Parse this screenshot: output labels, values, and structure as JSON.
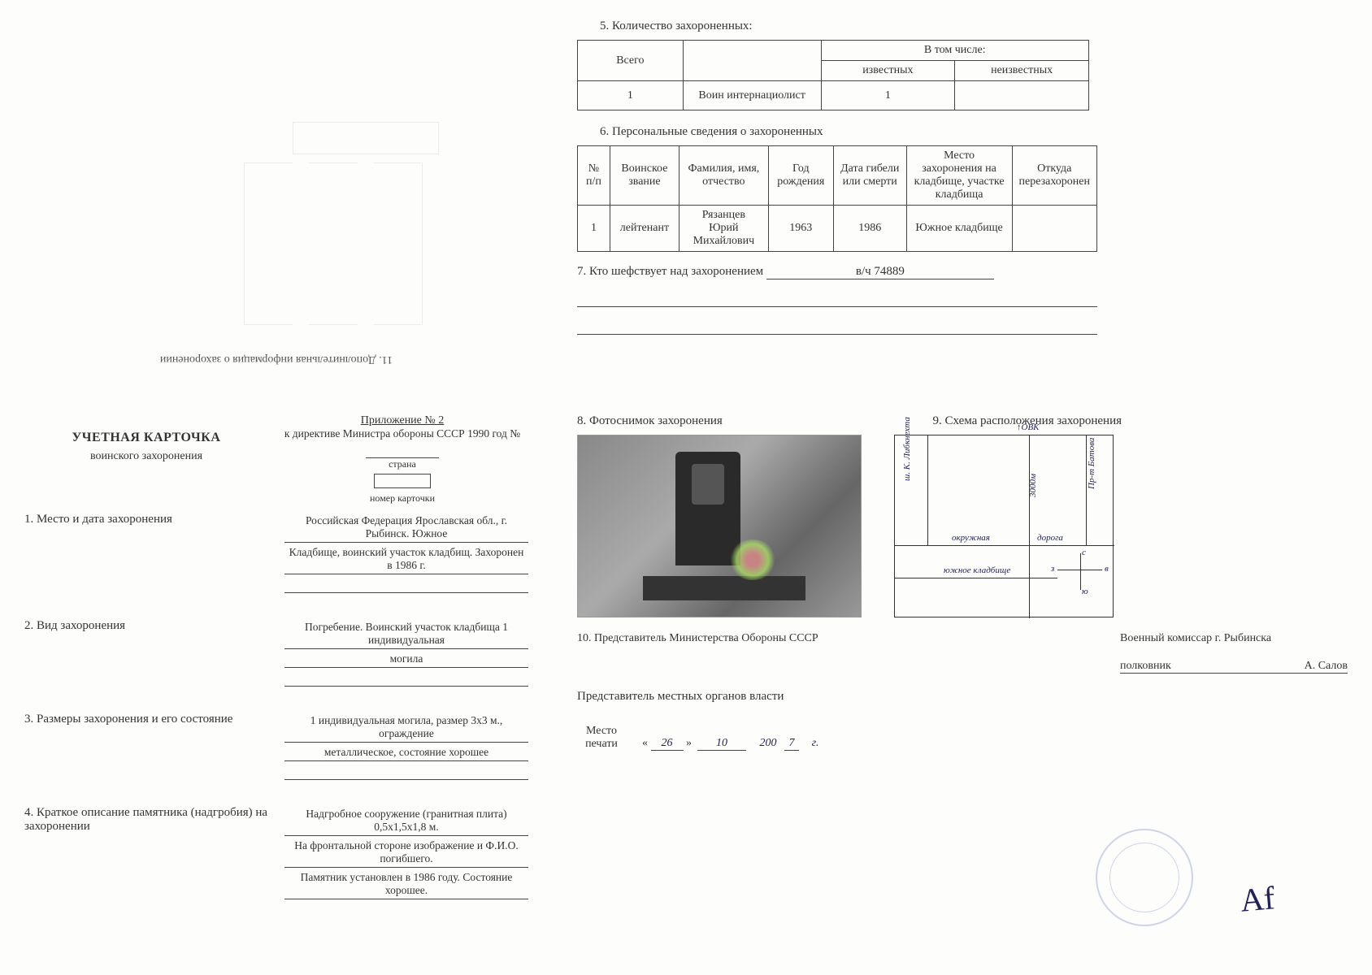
{
  "top_left": {
    "rotated_caption": "11. Дополнительная информация о захоронении"
  },
  "top_right": {
    "sec5_title": "5.   Количество захороненных:",
    "table5": {
      "h_total": "Всего",
      "h_incl": "В том числе:",
      "h_known": "известных",
      "h_unknown": "неизвестных",
      "row": {
        "total": "1",
        "note": "Воин интернациолист",
        "known": "1",
        "unknown": ""
      }
    },
    "sec6_title": "6.   Персональные сведения о захороненных",
    "table6": {
      "h_num": "№ п/п",
      "h_rank": "Воинское звание",
      "h_name": "Фамилия, имя, отчество",
      "h_birth": "Год рождения",
      "h_death": "Дата гибели или смерти",
      "h_place": "Место захоронения на кладбище, участке кладбища",
      "h_from": "Откуда перезахоронен",
      "row": {
        "num": "1",
        "rank": "лейтенант",
        "name": "Рязанцев Юрий Михайлович",
        "birth": "1963",
        "death": "1986",
        "place": "Южное кладбище",
        "from": ""
      }
    },
    "sec7_label": "7. Кто шефствует над захоронением",
    "sec7_value": "в/ч 74889"
  },
  "bottom_left": {
    "title": "УЧЕТНАЯ КАРТОЧКА",
    "subtitle": "воинского захоронения",
    "appendix": "Приложение № 2",
    "directive": "к директиве Министра обороны СССР 1990 год №",
    "country_label": "страна",
    "cardnum_label": "номер карточки",
    "items": [
      {
        "label": "1.   Место и дата захоронения",
        "lines": [
          "Российская Федерация Ярославская обл., г. Рыбинск. Южное",
          "Кладбище, воинский участок кладбищ. Захоронен в 1986 г.",
          ""
        ]
      },
      {
        "label": "2.   Вид захоронения",
        "lines": [
          "Погребение. Воинский участок кладбища 1 индивидуальная",
          "могила",
          ""
        ]
      },
      {
        "label": "3.   Размеры захоронения и его состояние",
        "lines": [
          "1 индивидуальная могила, размер 3х3 м.,   ограждение",
          "металлическое, состояние хорошее",
          ""
        ]
      },
      {
        "label": "4.   Краткое описание памятника (надгробия) на захоронении",
        "lines": [
          "Надгробное сооружение (гранитная плита) 0,5х1,5х1,8  м.",
          "На фронтальной стороне изображение  и  Ф.И.О.  погибшего.",
          "Памятник установлен в 1986 году. Состояние хорошее."
        ]
      }
    ]
  },
  "bottom_right": {
    "sec8": "8. Фотоснимок захоронения",
    "sec9": "9. Схема расположения захоронения",
    "scheme_labels": {
      "obk": "↑ОВК",
      "street1": "ш. К. Либкнехта",
      "dist": "3000м",
      "street2": "Пр-т Батова",
      "ring": "окружная",
      "road": "дорога",
      "south": "южное кладбище",
      "n": "с",
      "s": "ю",
      "w": "з",
      "e": "в"
    },
    "sec10": "10. Представитель Министерства Обороны СССР",
    "commissar": "Военный комиссар г. Рыбинска",
    "rank": "полковник",
    "name": "А. Салов",
    "rep_local": "Представитель местных органов власти",
    "place_seal": "Место печати",
    "date": {
      "d": "26",
      "m": "10",
      "y_prefix": "200",
      "y_hand": "7",
      "g": "г."
    }
  }
}
